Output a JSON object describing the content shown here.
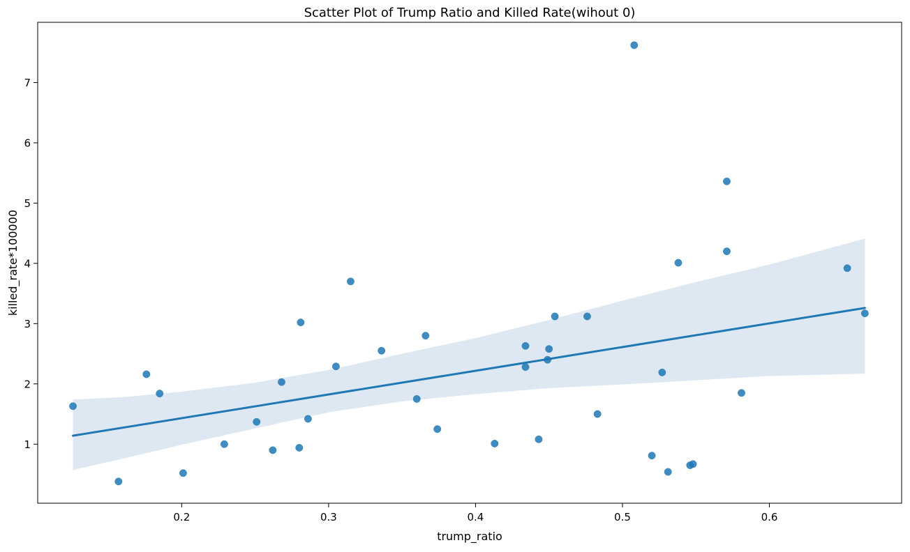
{
  "chart_data": {
    "type": "scatter",
    "title": "Scatter Plot of Trump Ratio and Killed Rate(wihout 0)",
    "xlabel": "trump_ratio",
    "ylabel": "killed_rate*100000",
    "xlim": [
      0.102,
      0.69
    ],
    "ylim": [
      0.02,
      8.0
    ],
    "xticks": [
      0.2,
      0.3,
      0.4,
      0.5,
      0.6
    ],
    "xtick_labels": [
      "0.2",
      "0.3",
      "0.4",
      "0.5",
      "0.6"
    ],
    "yticks": [
      1,
      2,
      3,
      4,
      5,
      6,
      7
    ],
    "ytick_labels": [
      "1",
      "2",
      "3",
      "4",
      "5",
      "6",
      "7"
    ],
    "grid": false,
    "colors": {
      "points": "#1f77b4",
      "fit_line": "#1f77b4",
      "band": "#dde8f3"
    },
    "points": [
      {
        "x": 0.126,
        "y": 1.63
      },
      {
        "x": 0.157,
        "y": 0.38
      },
      {
        "x": 0.176,
        "y": 2.16
      },
      {
        "x": 0.185,
        "y": 1.84
      },
      {
        "x": 0.201,
        "y": 0.52
      },
      {
        "x": 0.229,
        "y": 1.0
      },
      {
        "x": 0.251,
        "y": 1.37
      },
      {
        "x": 0.262,
        "y": 0.9
      },
      {
        "x": 0.268,
        "y": 2.03
      },
      {
        "x": 0.28,
        "y": 0.94
      },
      {
        "x": 0.281,
        "y": 3.02
      },
      {
        "x": 0.286,
        "y": 1.42
      },
      {
        "x": 0.305,
        "y": 2.29
      },
      {
        "x": 0.315,
        "y": 3.7
      },
      {
        "x": 0.336,
        "y": 2.55
      },
      {
        "x": 0.36,
        "y": 1.75
      },
      {
        "x": 0.366,
        "y": 2.8
      },
      {
        "x": 0.374,
        "y": 1.25
      },
      {
        "x": 0.413,
        "y": 1.01
      },
      {
        "x": 0.434,
        "y": 2.63
      },
      {
        "x": 0.434,
        "y": 2.28
      },
      {
        "x": 0.443,
        "y": 1.08
      },
      {
        "x": 0.449,
        "y": 2.4
      },
      {
        "x": 0.45,
        "y": 2.58
      },
      {
        "x": 0.454,
        "y": 3.12
      },
      {
        "x": 0.476,
        "y": 3.12
      },
      {
        "x": 0.483,
        "y": 1.5
      },
      {
        "x": 0.508,
        "y": 7.62
      },
      {
        "x": 0.52,
        "y": 0.81
      },
      {
        "x": 0.527,
        "y": 2.19
      },
      {
        "x": 0.531,
        "y": 0.54
      },
      {
        "x": 0.538,
        "y": 4.01
      },
      {
        "x": 0.546,
        "y": 0.65
      },
      {
        "x": 0.548,
        "y": 0.67
      },
      {
        "x": 0.571,
        "y": 5.36
      },
      {
        "x": 0.571,
        "y": 4.2
      },
      {
        "x": 0.581,
        "y": 1.85
      },
      {
        "x": 0.653,
        "y": 3.92
      },
      {
        "x": 0.665,
        "y": 3.17
      }
    ],
    "regression": {
      "x": [
        0.126,
        0.665
      ],
      "y": [
        1.14,
        3.26
      ]
    },
    "confidence_band": {
      "x": [
        0.126,
        0.16,
        0.2,
        0.25,
        0.3,
        0.35,
        0.4,
        0.45,
        0.5,
        0.55,
        0.6,
        0.665
      ],
      "upper": [
        1.74,
        1.78,
        1.87,
        2.02,
        2.23,
        2.5,
        2.76,
        3.06,
        3.38,
        3.69,
        3.98,
        4.41
      ],
      "lower": [
        0.57,
        0.76,
        0.99,
        1.26,
        1.53,
        1.71,
        1.83,
        1.93,
        1.99,
        2.06,
        2.13,
        2.17
      ]
    }
  }
}
